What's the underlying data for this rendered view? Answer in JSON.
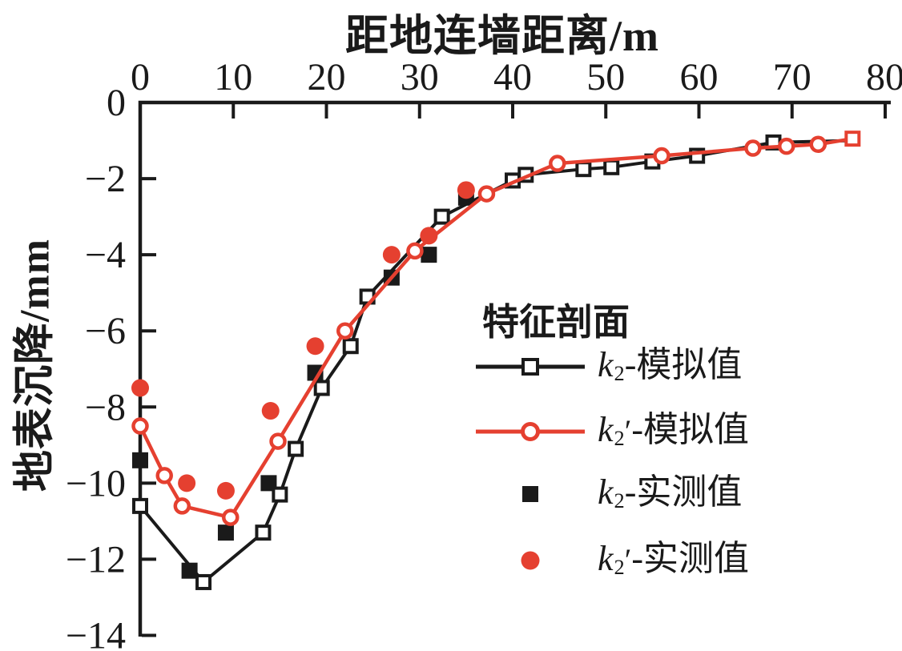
{
  "colors": {
    "axis": "#1a1a1a",
    "black_series": "#1a1a1a",
    "red_series": "#e54030",
    "background": "#ffffff"
  },
  "chart_data": {
    "type": "line",
    "title": "",
    "xlabel": "距地连墙距离/m",
    "ylabel": "地表沉降/mm",
    "x_range": [
      0,
      80
    ],
    "y_range": [
      0,
      -14
    ],
    "x_ticks": [
      0,
      10,
      20,
      30,
      40,
      50,
      60,
      70,
      80
    ],
    "y_ticks": [
      0,
      -2,
      -4,
      -6,
      -8,
      -10,
      -12,
      -14
    ],
    "grid": false,
    "legend_position": "inside-right",
    "series": [
      {
        "name": "k2-模拟值",
        "type": "line",
        "color": "#1a1a1a",
        "line_width": 4,
        "marker": "open-square",
        "skip_last_marker": true,
        "points": [
          [
            0,
            -10.6
          ],
          [
            6.8,
            -12.6
          ],
          [
            13.2,
            -11.3
          ],
          [
            15,
            -10.3
          ],
          [
            16.7,
            -9.1
          ],
          [
            19.5,
            -7.5
          ],
          [
            22.6,
            -6.4
          ],
          [
            24.4,
            -5.1
          ],
          [
            32.4,
            -3.0
          ],
          [
            40,
            -2.05
          ],
          [
            41.4,
            -1.9
          ],
          [
            47.6,
            -1.75
          ],
          [
            50.6,
            -1.7
          ],
          [
            55,
            -1.55
          ],
          [
            59.8,
            -1.4
          ],
          [
            68,
            -1.05
          ],
          [
            76.5,
            -1.0
          ]
        ]
      },
      {
        "name": "k2′-模拟值",
        "type": "line",
        "color": "#e54030",
        "line_width": 4.5,
        "marker": "open-circle",
        "last_marker": "open-square",
        "points": [
          [
            0,
            -8.5
          ],
          [
            2.6,
            -9.8
          ],
          [
            4.5,
            -10.6
          ],
          [
            9.7,
            -10.9
          ],
          [
            14.8,
            -8.9
          ],
          [
            22,
            -6.0
          ],
          [
            29.5,
            -3.9
          ],
          [
            37.2,
            -2.4
          ],
          [
            44.8,
            -1.6
          ],
          [
            56,
            -1.4
          ],
          [
            65.8,
            -1.2
          ],
          [
            69.4,
            -1.15
          ],
          [
            72.8,
            -1.1
          ],
          [
            76.5,
            -0.95
          ]
        ]
      },
      {
        "name": "k2-实测值",
        "type": "scatter",
        "color": "#1a1a1a",
        "marker": "filled-square",
        "points": [
          [
            0,
            -9.4
          ],
          [
            5.3,
            -12.3
          ],
          [
            9.2,
            -11.3
          ],
          [
            13.8,
            -10.0
          ],
          [
            18.8,
            -7.1
          ],
          [
            27,
            -4.6
          ],
          [
            31,
            -4.0
          ],
          [
            35,
            -2.5
          ]
        ]
      },
      {
        "name": "k2′-实测值",
        "type": "scatter",
        "color": "#e54030",
        "marker": "filled-circle",
        "points": [
          [
            0,
            -7.5
          ],
          [
            5,
            -10.0
          ],
          [
            9.2,
            -10.2
          ],
          [
            14,
            -8.1
          ],
          [
            18.8,
            -6.4
          ],
          [
            27,
            -4.0
          ],
          [
            31,
            -3.5
          ],
          [
            35,
            -2.3
          ]
        ]
      }
    ]
  },
  "legend": {
    "title": "特征剖面",
    "items": [
      {
        "var": "k",
        "sub": "2",
        "prime": "",
        "text": "-模拟值",
        "color": "#1a1a1a",
        "swatch": "line-open-square"
      },
      {
        "var": "k",
        "sub": "2",
        "prime": "′",
        "text": "-模拟值",
        "color": "#e54030",
        "swatch": "line-open-circle"
      },
      {
        "var": "k",
        "sub": "2",
        "prime": "",
        "text": "-实测值",
        "color": "#1a1a1a",
        "swatch": "filled-square"
      },
      {
        "var": "k",
        "sub": "2",
        "prime": "′",
        "text": "-实测值",
        "color": "#e54030",
        "swatch": "filled-circle"
      }
    ]
  }
}
